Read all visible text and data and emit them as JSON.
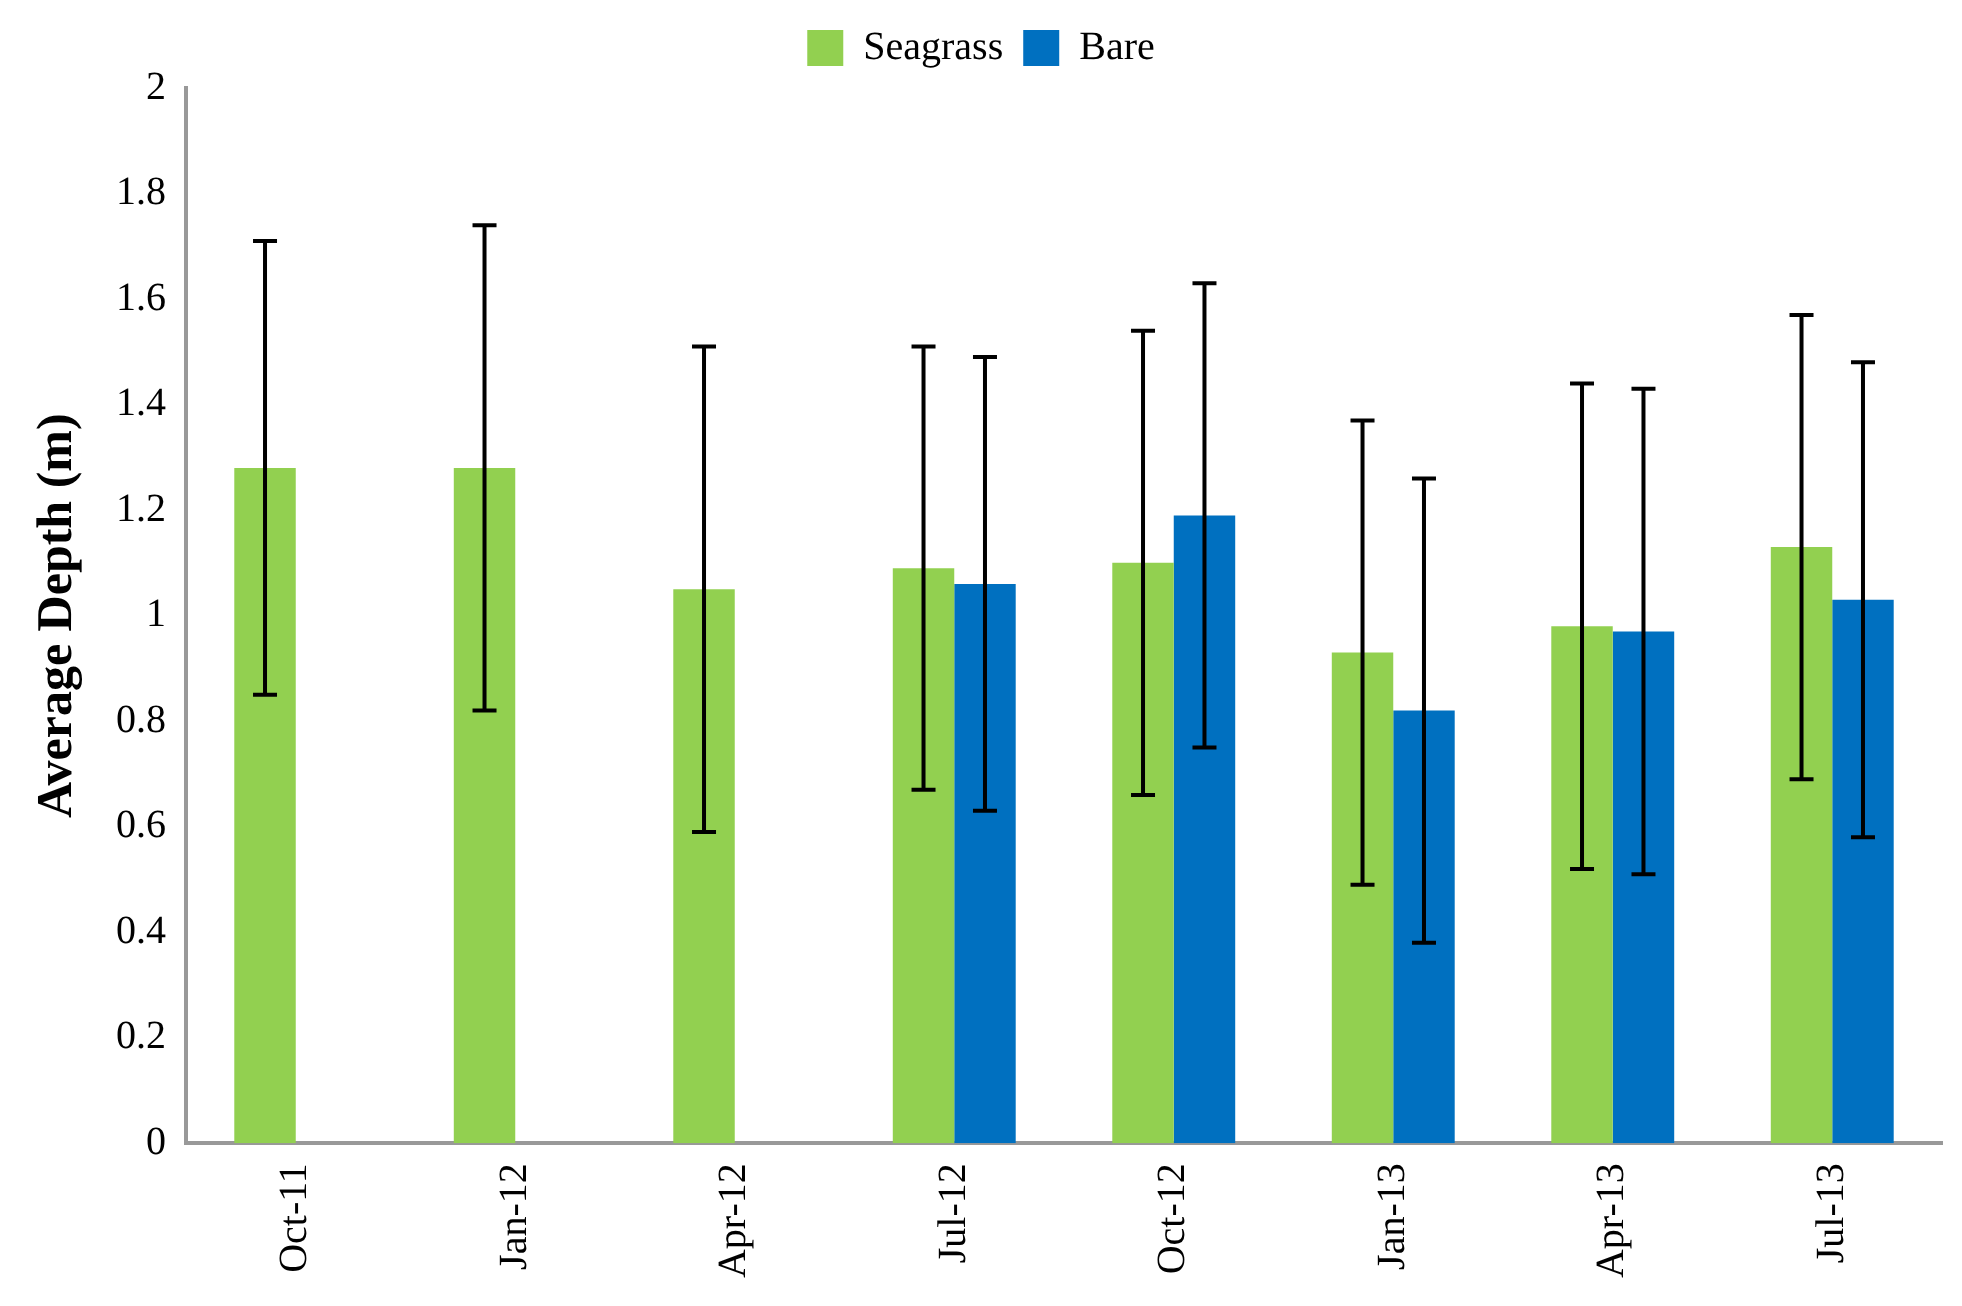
{
  "chart_data": {
    "type": "bar",
    "ylabel": "Average Depth (m)",
    "categories": [
      "Oct-11",
      "Jan-12",
      "Apr-12",
      "Jul-12",
      "Oct-12",
      "Jan-13",
      "Apr-13",
      "Jul-13"
    ],
    "series": [
      {
        "name": "Seagrass",
        "color": "#92d050",
        "values": [
          1.28,
          1.28,
          1.05,
          1.09,
          1.1,
          0.93,
          0.98,
          1.13
        ],
        "errors": [
          0.43,
          0.46,
          0.46,
          0.42,
          0.44,
          0.44,
          0.46,
          0.44
        ]
      },
      {
        "name": "Bare",
        "color": "#0070c0",
        "values": [
          null,
          null,
          null,
          1.06,
          1.19,
          0.82,
          0.97,
          1.03
        ],
        "errors": [
          null,
          null,
          null,
          0.43,
          0.44,
          0.44,
          0.46,
          0.45
        ]
      }
    ],
    "ylim": [
      0,
      2
    ],
    "yticks": [
      0,
      0.2,
      0.4,
      0.6,
      0.8,
      1,
      1.2,
      1.4,
      1.6,
      1.8,
      2
    ],
    "legend": "top",
    "grid": false
  }
}
